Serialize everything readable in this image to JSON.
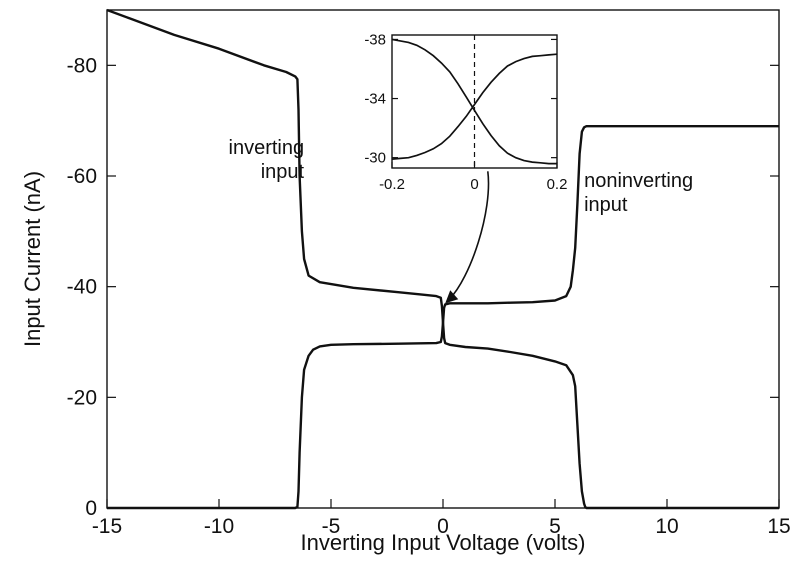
{
  "chart_data": [
    {
      "type": "line",
      "title": "",
      "xlabel": "Inverting Input Voltage (volts)",
      "ylabel": "Input Current (nA)",
      "xlim": [
        -15,
        15
      ],
      "ylim": [
        -90,
        0
      ],
      "y_axis_inverted": true,
      "grid": false,
      "x_ticks": [
        -15,
        -10,
        -5,
        0,
        5,
        10,
        15
      ],
      "x_tick_labels": [
        "-15",
        "-10",
        "-5",
        "0",
        "5",
        "10",
        "15"
      ],
      "y_ticks": [
        0,
        -20,
        -40,
        -60,
        -80
      ],
      "y_tick_labels": [
        "0",
        "-20",
        "-40",
        "-60",
        "-80"
      ],
      "series": [
        {
          "x": [
            -15,
            -14,
            -12,
            -10,
            -8,
            -7,
            -6.6,
            -6.5,
            -6.45,
            -6.4,
            -6.3,
            -6.2,
            -6.0,
            -5.5,
            -4,
            -2,
            -1,
            -0.3,
            -0.1,
            -0.05,
            0,
            0.05,
            0.1,
            0.3,
            1,
            2,
            3,
            4,
            5,
            5.5,
            5.8,
            5.9,
            6.0,
            6.1,
            6.2,
            6.3,
            6.35,
            6.4,
            6.5,
            8,
            10,
            12,
            15
          ],
          "y": [
            -90,
            -88.5,
            -85.5,
            -83,
            -80,
            -78.8,
            -78,
            -77.5,
            -72,
            -60,
            -50,
            -45,
            -42,
            -40.8,
            -39.8,
            -39,
            -38.6,
            -38.3,
            -38.0,
            -36.5,
            -33.5,
            -30.7,
            -29.8,
            -29.5,
            -29.1,
            -28.8,
            -28.2,
            -27.5,
            -26.5,
            -25.8,
            -24,
            -22,
            -15,
            -8,
            -3,
            -0.8,
            -0.2,
            0,
            0,
            0,
            0,
            0,
            0
          ]
        },
        {
          "x": [
            -15,
            -10,
            -8,
            -7,
            -6.6,
            -6.5,
            -6.45,
            -6.4,
            -6.3,
            -6.2,
            -6.0,
            -5.8,
            -5.5,
            -5,
            -4,
            -2,
            -0.3,
            -0.1,
            -0.05,
            0,
            0.05,
            0.1,
            0.3,
            1,
            2,
            3,
            4,
            5,
            5.5,
            5.7,
            5.8,
            5.9,
            6.0,
            6.1,
            6.2,
            6.3,
            6.4,
            6.5,
            8,
            10,
            12,
            15
          ],
          "y": [
            0,
            0,
            0,
            0,
            0,
            -0.2,
            -3,
            -10,
            -20,
            -25,
            -27.5,
            -28.6,
            -29.2,
            -29.5,
            -29.6,
            -29.7,
            -29.8,
            -30.0,
            -31.0,
            -33.5,
            -36.2,
            -36.8,
            -37.0,
            -37.0,
            -37.0,
            -37.1,
            -37.2,
            -37.5,
            -38.3,
            -40,
            -43,
            -47,
            -55,
            -64,
            -68,
            -68.8,
            -69,
            -69,
            -69,
            -69,
            -69,
            -69
          ]
        }
      ],
      "annotations": [
        {
          "text": [
            "inverting",
            "input"
          ],
          "x": -6.2,
          "y": -64
        },
        {
          "text": [
            "noninverting",
            "input"
          ],
          "x": 6.3,
          "y": -58
        }
      ],
      "arrow": {
        "from": [
          2,
          -50
        ],
        "to": [
          0.1,
          -37
        ]
      }
    },
    {
      "type": "line",
      "title": "",
      "xlabel": "",
      "ylabel": "",
      "xlim": [
        -0.2,
        0.2
      ],
      "ylim": [
        -29.3,
        -38.3
      ],
      "grid": false,
      "dashed_vertical_at": 0,
      "x_ticks": [
        -0.2,
        0,
        0.2
      ],
      "x_tick_labels": [
        "-0.2",
        "0",
        "0.2"
      ],
      "y_ticks": [
        -38,
        -34,
        -30
      ],
      "y_tick_labels": [
        "-38",
        "-34",
        "-30"
      ],
      "series": [
        {
          "x": [
            -0.2,
            -0.18,
            -0.16,
            -0.14,
            -0.12,
            -0.1,
            -0.08,
            -0.06,
            -0.04,
            -0.02,
            0,
            0.02,
            0.04,
            0.06,
            0.08,
            0.1,
            0.12,
            0.14,
            0.16,
            0.18,
            0.2
          ],
          "y": [
            -38.0,
            -37.9,
            -37.8,
            -37.6,
            -37.3,
            -36.9,
            -36.4,
            -35.8,
            -35.0,
            -34.1,
            -33.2,
            -32.3,
            -31.5,
            -30.8,
            -30.3,
            -30.0,
            -29.8,
            -29.7,
            -29.65,
            -29.6,
            -29.6
          ]
        },
        {
          "x": [
            -0.2,
            -0.18,
            -0.16,
            -0.14,
            -0.12,
            -0.1,
            -0.08,
            -0.06,
            -0.04,
            -0.02,
            0,
            0.02,
            0.04,
            0.06,
            0.08,
            0.1,
            0.12,
            0.14,
            0.16,
            0.18,
            0.2
          ],
          "y": [
            -29.9,
            -29.95,
            -30.0,
            -30.15,
            -30.35,
            -30.6,
            -30.95,
            -31.45,
            -32.1,
            -32.8,
            -33.6,
            -34.4,
            -35.1,
            -35.7,
            -36.2,
            -36.5,
            -36.7,
            -36.85,
            -36.9,
            -36.95,
            -37.0
          ]
        }
      ]
    }
  ]
}
